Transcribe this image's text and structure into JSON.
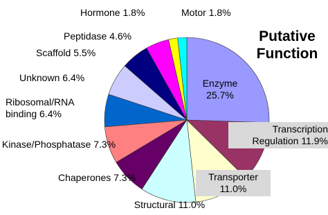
{
  "chart_data": {
    "type": "pie",
    "title": "Putative Function",
    "categories": [
      "Enzyme",
      "Transcription Regulation",
      "Transporter",
      "Structural",
      "Chaperones",
      "Kinase/Phosphatase",
      "Ribosomal/RNA binding",
      "Unknown",
      "Scaffold",
      "Peptidase",
      "Hormone",
      "Motor"
    ],
    "values": [
      25.7,
      11.9,
      11.0,
      11.0,
      7.3,
      7.3,
      6.4,
      6.4,
      5.5,
      4.6,
      1.8,
      1.8
    ],
    "value_labels": [
      "25.7%",
      "11.9%",
      "11.0%",
      "11.0%",
      "7.3%",
      "7.3%",
      "6.4%",
      "6.4%",
      "5.5%",
      "4.6%",
      "1.8%",
      "1.8%"
    ],
    "colors": [
      "#9999ff",
      "#993366",
      "#ffffcc",
      "#ccffff",
      "#660066",
      "#ff8080",
      "#0066cc",
      "#ccccff",
      "#000080",
      "#ff00ff",
      "#ffff00",
      "#00ffff"
    ]
  }
}
